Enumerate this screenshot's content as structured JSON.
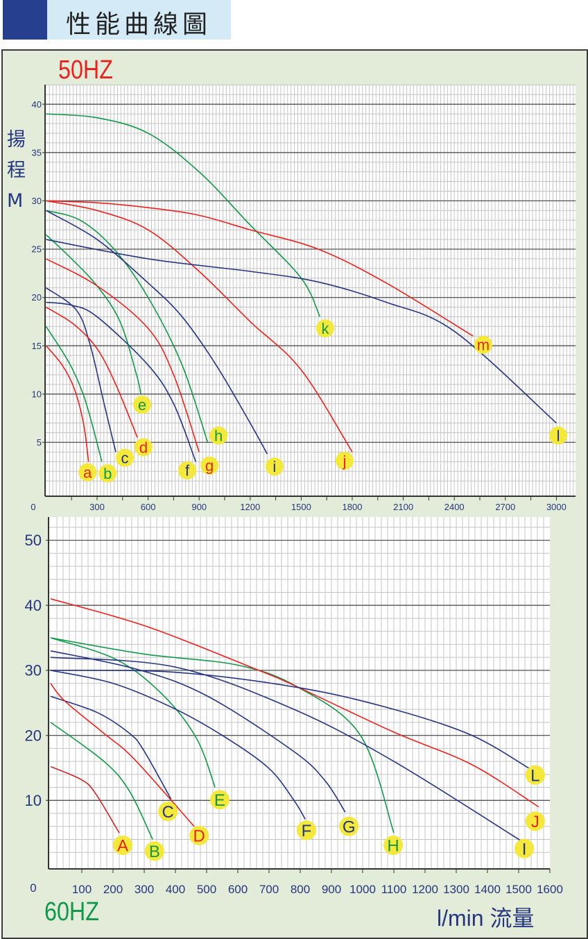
{
  "header": {
    "title": "性能曲線圖"
  },
  "colors": {
    "red": "#e8231f",
    "darkred": "#c4262b",
    "green": "#12984a",
    "navy": "#263580",
    "label_bg": "#f4e83a",
    "header_block": "#263f8f",
    "header_band": "#d4eaf7",
    "panel_bg": "#e2ecd8"
  },
  "chart_data": [
    {
      "type": "line",
      "title": "50HZ",
      "ylabel": [
        "揚",
        "程",
        "M"
      ],
      "xlabel": "",
      "origin_label": "0",
      "xlim": [
        0,
        3100
      ],
      "ylim": [
        0,
        42
      ],
      "xticks": [
        300,
        600,
        900,
        1200,
        1500,
        1800,
        2100,
        2400,
        2700,
        3000
      ],
      "yticks": [
        5,
        10,
        15,
        20,
        25,
        30,
        35,
        40
      ],
      "grid": true,
      "series": [
        {
          "name": "a",
          "color": "red",
          "points": [
            [
              0,
              15
            ],
            [
              95,
              13
            ],
            [
              165,
              10.6
            ],
            [
              220,
              7
            ],
            [
              250,
              3
            ]
          ],
          "label_at": [
            244,
            1.9
          ]
        },
        {
          "name": "b",
          "color": "green",
          "points": [
            [
              0,
              17
            ],
            [
              137,
              13.2
            ],
            [
              218,
              10
            ],
            [
              272,
              6.8
            ],
            [
              328,
              3
            ]
          ],
          "label_at": [
            362,
            1.8
          ]
        },
        {
          "name": "c",
          "color": "navy",
          "points": [
            [
              0,
              21
            ],
            [
              178,
              18.7
            ],
            [
              259,
              15.1
            ],
            [
              340,
              9.1
            ],
            [
              410,
              4
            ]
          ],
          "label_at": [
            463,
            3.4
          ]
        },
        {
          "name": "d",
          "color": "red",
          "points": [
            [
              0,
              19
            ],
            [
              165,
              17.2
            ],
            [
              300,
              14.7
            ],
            [
              410,
              11
            ],
            [
              537,
              5.5
            ]
          ],
          "label_at": [
            573,
            4.5
          ]
        },
        {
          "name": "e",
          "color": "green",
          "points": [
            [
              0,
              26.5
            ],
            [
              150,
              24
            ],
            [
              300,
              21.2
            ],
            [
              435,
              17.5
            ],
            [
              532,
              12
            ],
            [
              557,
              10
            ]
          ],
          "label_at": [
            565,
            8.9
          ]
        },
        {
          "name": "f",
          "color": "navy",
          "points": [
            [
              0,
              19.5
            ],
            [
              150,
              19.2
            ],
            [
              300,
              18
            ],
            [
              600,
              13
            ],
            [
              750,
              9
            ],
            [
              880,
              3
            ]
          ],
          "label_at": [
            830,
            2.1
          ]
        },
        {
          "name": "g",
          "color": "red",
          "points": [
            [
              0,
              24
            ],
            [
              300,
              21.2
            ],
            [
              600,
              16.8
            ],
            [
              750,
              12
            ],
            [
              900,
              4
            ]
          ],
          "label_at": [
            961,
            2.6
          ]
        },
        {
          "name": "h",
          "color": "green",
          "points": [
            [
              0,
              29
            ],
            [
              200,
              28
            ],
            [
              400,
              25
            ],
            [
              600,
              20
            ],
            [
              800,
              13
            ],
            [
              950,
              5
            ]
          ],
          "label_at": [
            1014,
            5.7
          ]
        },
        {
          "name": "i",
          "color": "navy",
          "points": [
            [
              0,
              29
            ],
            [
              300,
              26
            ],
            [
              600,
              21.5
            ],
            [
              800,
              18
            ],
            [
              1000,
              13
            ],
            [
              1200,
              7
            ],
            [
              1300,
              3.8
            ]
          ],
          "label_at": [
            1343,
            2.5
          ]
        },
        {
          "name": "j",
          "color": "red",
          "points": [
            [
              0,
              30
            ],
            [
              300,
              29
            ],
            [
              600,
              27
            ],
            [
              900,
              22.7
            ],
            [
              1200,
              17.5
            ],
            [
              1500,
              12.5
            ],
            [
              1800,
              4
            ]
          ],
          "label_at": [
            1755,
            3.1
          ]
        },
        {
          "name": "k",
          "color": "green",
          "points": [
            [
              0,
              39
            ],
            [
              300,
              38.6
            ],
            [
              600,
              37
            ],
            [
              900,
              33
            ],
            [
              1200,
              27.5
            ],
            [
              1500,
              22
            ],
            [
              1610,
              18
            ]
          ],
          "label_at": [
            1641,
            16.8
          ]
        },
        {
          "name": "l",
          "color": "navy",
          "points": [
            [
              0,
              26
            ],
            [
              600,
              24
            ],
            [
              1200,
              22.7
            ],
            [
              1600,
              21.6
            ],
            [
              2000,
              19.5
            ],
            [
              2400,
              16.5
            ],
            [
              3000,
              7
            ]
          ],
          "label_at": [
            3011,
            5.7
          ]
        },
        {
          "name": "m",
          "color": "red",
          "points": [
            [
              0,
              30
            ],
            [
              300,
              29.8
            ],
            [
              600,
              29.3
            ],
            [
              900,
              28.5
            ],
            [
              1200,
              27
            ],
            [
              1600,
              25
            ],
            [
              2000,
              21.5
            ],
            [
              2510,
              16
            ]
          ],
          "label_at": [
            2570,
            15.1
          ]
        }
      ]
    },
    {
      "type": "line",
      "title": "60HZ",
      "ylabel": [],
      "xlabel": "l/min 流量",
      "origin_label": "0",
      "xlim": [
        0,
        1600
      ],
      "ylim": [
        0,
        53
      ],
      "xticks": [
        100,
        200,
        300,
        400,
        500,
        600,
        700,
        800,
        900,
        1000,
        1100,
        1200,
        1300,
        1400,
        1500,
        1600
      ],
      "yticks": [
        10,
        20,
        30,
        40,
        50
      ],
      "grid": true,
      "series": [
        {
          "name": "A",
          "color": "darkred",
          "points": [
            [
              0,
              15.2
            ],
            [
              98,
              13.2
            ],
            [
              142,
              11.2
            ],
            [
              220,
              5
            ]
          ],
          "label_at": [
            231,
            3.1
          ]
        },
        {
          "name": "B",
          "color": "green",
          "points": [
            [
              0,
              22
            ],
            [
              171,
              16
            ],
            [
              253,
              11.4
            ],
            [
              327,
              4
            ]
          ],
          "label_at": [
            333,
            2.2
          ]
        },
        {
          "name": "C",
          "color": "navy",
          "points": [
            [
              0,
              26
            ],
            [
              150,
              23.5
            ],
            [
              253,
              20.3
            ],
            [
              297,
              17.8
            ],
            [
              386,
              10.2
            ]
          ],
          "label_at": [
            376,
            8.3
          ]
        },
        {
          "name": "D",
          "color": "red",
          "points": [
            [
              0,
              28
            ],
            [
              45,
              25.3
            ],
            [
              171,
              20.3
            ],
            [
              267,
              16.4
            ],
            [
              460,
              6
            ]
          ],
          "label_at": [
            476,
            4.6
          ]
        },
        {
          "name": "E",
          "color": "green",
          "points": [
            [
              0,
              35
            ],
            [
              209,
              31.7
            ],
            [
              356,
              26.4
            ],
            [
              467,
              19.6
            ],
            [
              527,
              12
            ]
          ],
          "label_at": [
            542,
            10.1
          ]
        },
        {
          "name": "F",
          "color": "navy",
          "points": [
            [
              0,
              30
            ],
            [
              200,
              28
            ],
            [
              393,
              24.2
            ],
            [
              550,
              20
            ],
            [
              698,
              15
            ],
            [
              780,
              10
            ],
            [
              816,
              7.1
            ]
          ],
          "label_at": [
            820,
            5.4
          ]
        },
        {
          "name": "G",
          "color": "navy",
          "points": [
            [
              0,
              33
            ],
            [
              282,
              30.1
            ],
            [
              504,
              26
            ],
            [
              780,
              17.5
            ],
            [
              880,
              13
            ],
            [
              944,
              8.2
            ]
          ],
          "label_at": [
            956,
            6
          ]
        },
        {
          "name": "H",
          "color": "green",
          "points": [
            [
              0,
              35
            ],
            [
              300,
              32.5
            ],
            [
              600,
              30.8
            ],
            [
              793,
              27.4
            ],
            [
              993,
              20
            ],
            [
              1100,
              5
            ]
          ],
          "label_at": [
            1098,
            3.1
          ]
        },
        {
          "name": "I",
          "color": "navy",
          "points": [
            [
              0,
              32
            ],
            [
              400,
              30.5
            ],
            [
              780,
              24
            ],
            [
              1100,
              16
            ],
            [
              1504,
              3.9
            ]
          ],
          "label_at": [
            1518,
            2.6
          ]
        },
        {
          "name": "J",
          "color": "red",
          "points": [
            [
              0,
              41
            ],
            [
              311,
              36.7
            ],
            [
              667,
              30
            ],
            [
              780,
              27.7
            ],
            [
              1100,
              20.5
            ],
            [
              1350,
              15.5
            ],
            [
              1564,
              9
            ]
          ],
          "label_at": [
            1553,
            6.8
          ]
        },
        {
          "name": "L",
          "color": "navy",
          "points": [
            [
              0,
              30
            ],
            [
              400,
              29.7
            ],
            [
              800,
              27.3
            ],
            [
              1100,
              24
            ],
            [
              1350,
              20
            ],
            [
              1538,
              14.8
            ]
          ],
          "label_at": [
            1553,
            13.9
          ]
        }
      ]
    }
  ]
}
